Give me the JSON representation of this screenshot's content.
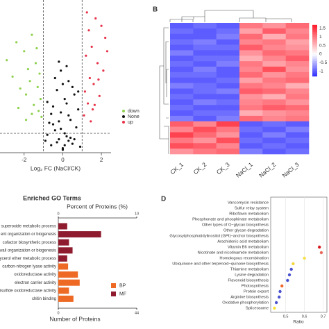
{
  "chart_data": [
    {
      "type": "scatter",
      "xlabel": "Log₂ FC (NaCl/CK)",
      "xlim": [
        -3.25,
        2.5
      ],
      "xticks": [
        -2,
        0,
        2
      ],
      "ylim": [
        0,
        10
      ],
      "thresholds_x": [
        -1,
        1
      ],
      "threshold_y": 1.3,
      "legend": "right",
      "series": [
        {
          "name": "down",
          "color": "#8fd14f",
          "x": [
            -2.9,
            -2.6,
            -2.4,
            -2.2,
            -2.0,
            -1.9,
            -1.8,
            -1.7,
            -1.6,
            -1.5,
            -1.4,
            -1.3,
            -1.25,
            -1.2,
            -1.15,
            -1.1,
            -2.3,
            -1.9,
            -1.6,
            -1.35
          ],
          "values": [
            6.2,
            5.1,
            7.4,
            4.3,
            6.8,
            3.9,
            5.6,
            4.8,
            7.9,
            3.2,
            6.0,
            4.4,
            2.8,
            5.3,
            3.6,
            2.4,
            3.0,
            2.2,
            2.6,
            7.0
          ]
        },
        {
          "name": "None",
          "color": "#111111",
          "x": [
            -0.9,
            -0.8,
            -0.7,
            -0.6,
            -0.5,
            -0.4,
            -0.3,
            -0.2,
            -0.1,
            0,
            0.1,
            0.2,
            0.3,
            0.4,
            0.5,
            0.6,
            0.7,
            0.8,
            0.9,
            -0.5,
            -0.3,
            -0.1,
            0.1,
            0.3,
            0.5,
            -0.2,
            0,
            0.2,
            0.4,
            -0.4,
            0.6,
            -0.6,
            0.8,
            -0.8,
            0,
            0.1,
            -0.1,
            0.2,
            -0.2,
            0.3
          ],
          "values": [
            0.8,
            1.2,
            2.0,
            0.5,
            3.1,
            1.5,
            4.2,
            0.9,
            2.7,
            0.3,
            3.6,
            1.1,
            4.8,
            2.2,
            0.6,
            3.9,
            1.7,
            2.9,
            0.4,
            1.9,
            0.7,
            5.5,
            1.3,
            2.5,
            4.4,
            6.1,
            0.2,
            3.3,
            1.0,
            5.0,
            0.9,
            2.6,
            4.1,
            3.4,
            4.6,
            0.5,
            1.6,
            5.8,
            2.1,
            0.8
          ]
        },
        {
          "name": "up",
          "color": "#e8324a",
          "x": [
            1.1,
            1.15,
            1.2,
            1.3,
            1.35,
            1.4,
            1.5,
            1.55,
            1.6,
            1.7,
            1.8,
            1.9,
            2.0,
            2.1,
            2.2,
            1.25,
            1.45,
            1.65,
            1.85,
            2.3
          ],
          "values": [
            2.5,
            4.1,
            6.5,
            3.3,
            8.2,
            5.0,
            7.1,
            2.9,
            4.6,
            9.0,
            6.0,
            3.8,
            8.5,
            5.5,
            7.7,
            9.4,
            2.1,
            3.2,
            4.9,
            6.8
          ]
        }
      ]
    },
    {
      "type": "heatmap",
      "panel": "B",
      "categories": [
        "CK_1",
        "CK_2",
        "CK_3",
        "NaCl_1",
        "NaCl_2",
        "NaCl_3"
      ],
      "zlim": [
        -1.3,
        1.7
      ],
      "zticks": [
        1.5,
        1,
        0.5,
        0,
        -0.5,
        -1
      ],
      "colorscale": [
        "#2d2dff",
        "#ffffff",
        "#ff1a2a"
      ],
      "values": [
        [
          -1.0,
          -0.9,
          -1.0,
          1.0,
          0.8,
          1.1
        ],
        [
          -0.9,
          -1.0,
          -0.9,
          0.7,
          1.2,
          0.9
        ],
        [
          -1.0,
          -1.0,
          -0.8,
          1.1,
          0.6,
          1.0
        ],
        [
          -0.9,
          -0.8,
          -1.0,
          0.9,
          1.0,
          0.7
        ],
        [
          -1.0,
          -0.9,
          -0.9,
          1.2,
          0.9,
          0.8
        ],
        [
          -0.8,
          -1.0,
          -1.0,
          0.8,
          1.1,
          1.0
        ],
        [
          -1.0,
          -0.9,
          -0.9,
          0.6,
          0.9,
          1.2
        ],
        [
          -0.9,
          -1.0,
          -0.8,
          1.0,
          0.7,
          0.9
        ],
        [
          -1.0,
          -0.8,
          -1.0,
          0.9,
          1.3,
          0.8
        ],
        [
          -0.9,
          -0.9,
          -1.0,
          1.1,
          0.8,
          1.0
        ],
        [
          -1.0,
          -1.0,
          -0.9,
          0.7,
          1.0,
          1.1
        ],
        [
          -0.8,
          -0.9,
          -1.0,
          1.0,
          0.9,
          0.6
        ],
        [
          -1.0,
          -0.9,
          -0.8,
          1.2,
          1.1,
          0.9
        ],
        [
          -0.9,
          -1.0,
          -1.0,
          0.8,
          0.6,
          1.0
        ],
        [
          -1.0,
          -0.8,
          -0.9,
          0.9,
          1.0,
          0.8
        ],
        [
          -0.9,
          -1.0,
          -1.0,
          1.0,
          1.2,
          1.1
        ],
        [
          -1.0,
          -0.9,
          -0.9,
          0.6,
          0.8,
          0.9
        ],
        [
          -0.8,
          -1.0,
          -0.8,
          1.1,
          0.9,
          1.0
        ],
        [
          1.2,
          0.9,
          1.4,
          -1.0,
          -0.9,
          -1.0
        ],
        [
          0.9,
          1.3,
          1.0,
          -0.9,
          -1.0,
          -0.8
        ],
        [
          1.4,
          1.1,
          0.8,
          -1.0,
          -0.8,
          -1.0
        ],
        [
          1.0,
          0.8,
          1.3,
          -0.9,
          -1.0,
          -0.9
        ],
        [
          1.3,
          1.2,
          0.9,
          -1.0,
          -0.9,
          -1.0
        ],
        [
          0.8,
          1.0,
          1.1,
          -0.8,
          -1.0,
          -0.9
        ]
      ]
    },
    {
      "type": "bar",
      "title": "Enriched GO Terms",
      "x2label": "Percent of Proteins (%)",
      "xlabel": "Number of Proteins",
      "xlim": [
        0,
        44
      ],
      "xticks": [
        0,
        44
      ],
      "x2lim": [
        0,
        10
      ],
      "x2ticks": [
        0,
        10
      ],
      "categories": [
        "superoxide metabolic process",
        "ent organization  or biogenesis",
        "cofactor biosynthetic process",
        "wall organization or biogenesis",
        "ycerol ether metabolic process",
        "carbon-nitrogen lyase activity",
        "oxidoreductase activity",
        "electron carrier activity",
        "isulfide oxidoreductase activity",
        "chitin binding"
      ],
      "series": [
        {
          "name": "BP",
          "color": "#ee6a24",
          "values": [
            null,
            null,
            null,
            null,
            null,
            5.5,
            11,
            12,
            6,
            8.5
          ]
        },
        {
          "name": "MF",
          "color": "#8e1b2e",
          "values": [
            5,
            24,
            6,
            8,
            5,
            null,
            null,
            null,
            null,
            null
          ]
        }
      ]
    },
    {
      "type": "dot",
      "panel": "D",
      "xlabel": "Ratio",
      "xlim": [
        0.42,
        0.72
      ],
      "xticks": [
        0.5,
        0.6,
        0.7
      ],
      "categories": [
        "Vancomycin resistance",
        "Sulfur relay system",
        "Riboflavin metabolism",
        "Phosphonate and phosphinate metabolism",
        "Other types of O−glycan biosynthesis",
        "Other glycan degradation",
        "Glycosylphosphatidylinositol (GPI)−anchor biosynthesis",
        "Arachidonic acid metabolism",
        "Vitamin B6 metabolism",
        "Nicotinate and nicotinamide metabolism",
        "Homologous recombination",
        "Ubiquinone and other terpenoid−quinone biosynthesis",
        "Thiamine metabolism",
        "Lysine degradation",
        "Flavonoid biosynthesis",
        "Photosynthesis",
        "Protein export",
        "Arginine biosynthesis",
        "Oxidative phosphorylation",
        "Spliceosome"
      ],
      "values": [
        null,
        null,
        null,
        null,
        null,
        null,
        null,
        null,
        0.68,
        0.69,
        0.6,
        0.54,
        0.53,
        0.52,
        0.51,
        0.48,
        0.47,
        0.465,
        0.45,
        0.44
      ],
      "colors": [
        null,
        null,
        null,
        null,
        null,
        null,
        null,
        null,
        "#d7191c",
        "#e8685c",
        "#f5e04a",
        "#f2d640",
        "#4a52d0",
        "#4a52d0",
        "#4a52d0",
        "#f0662a",
        "#4a52d0",
        "#4a52d0",
        "#4a52d0",
        "#f7e43a"
      ]
    }
  ]
}
